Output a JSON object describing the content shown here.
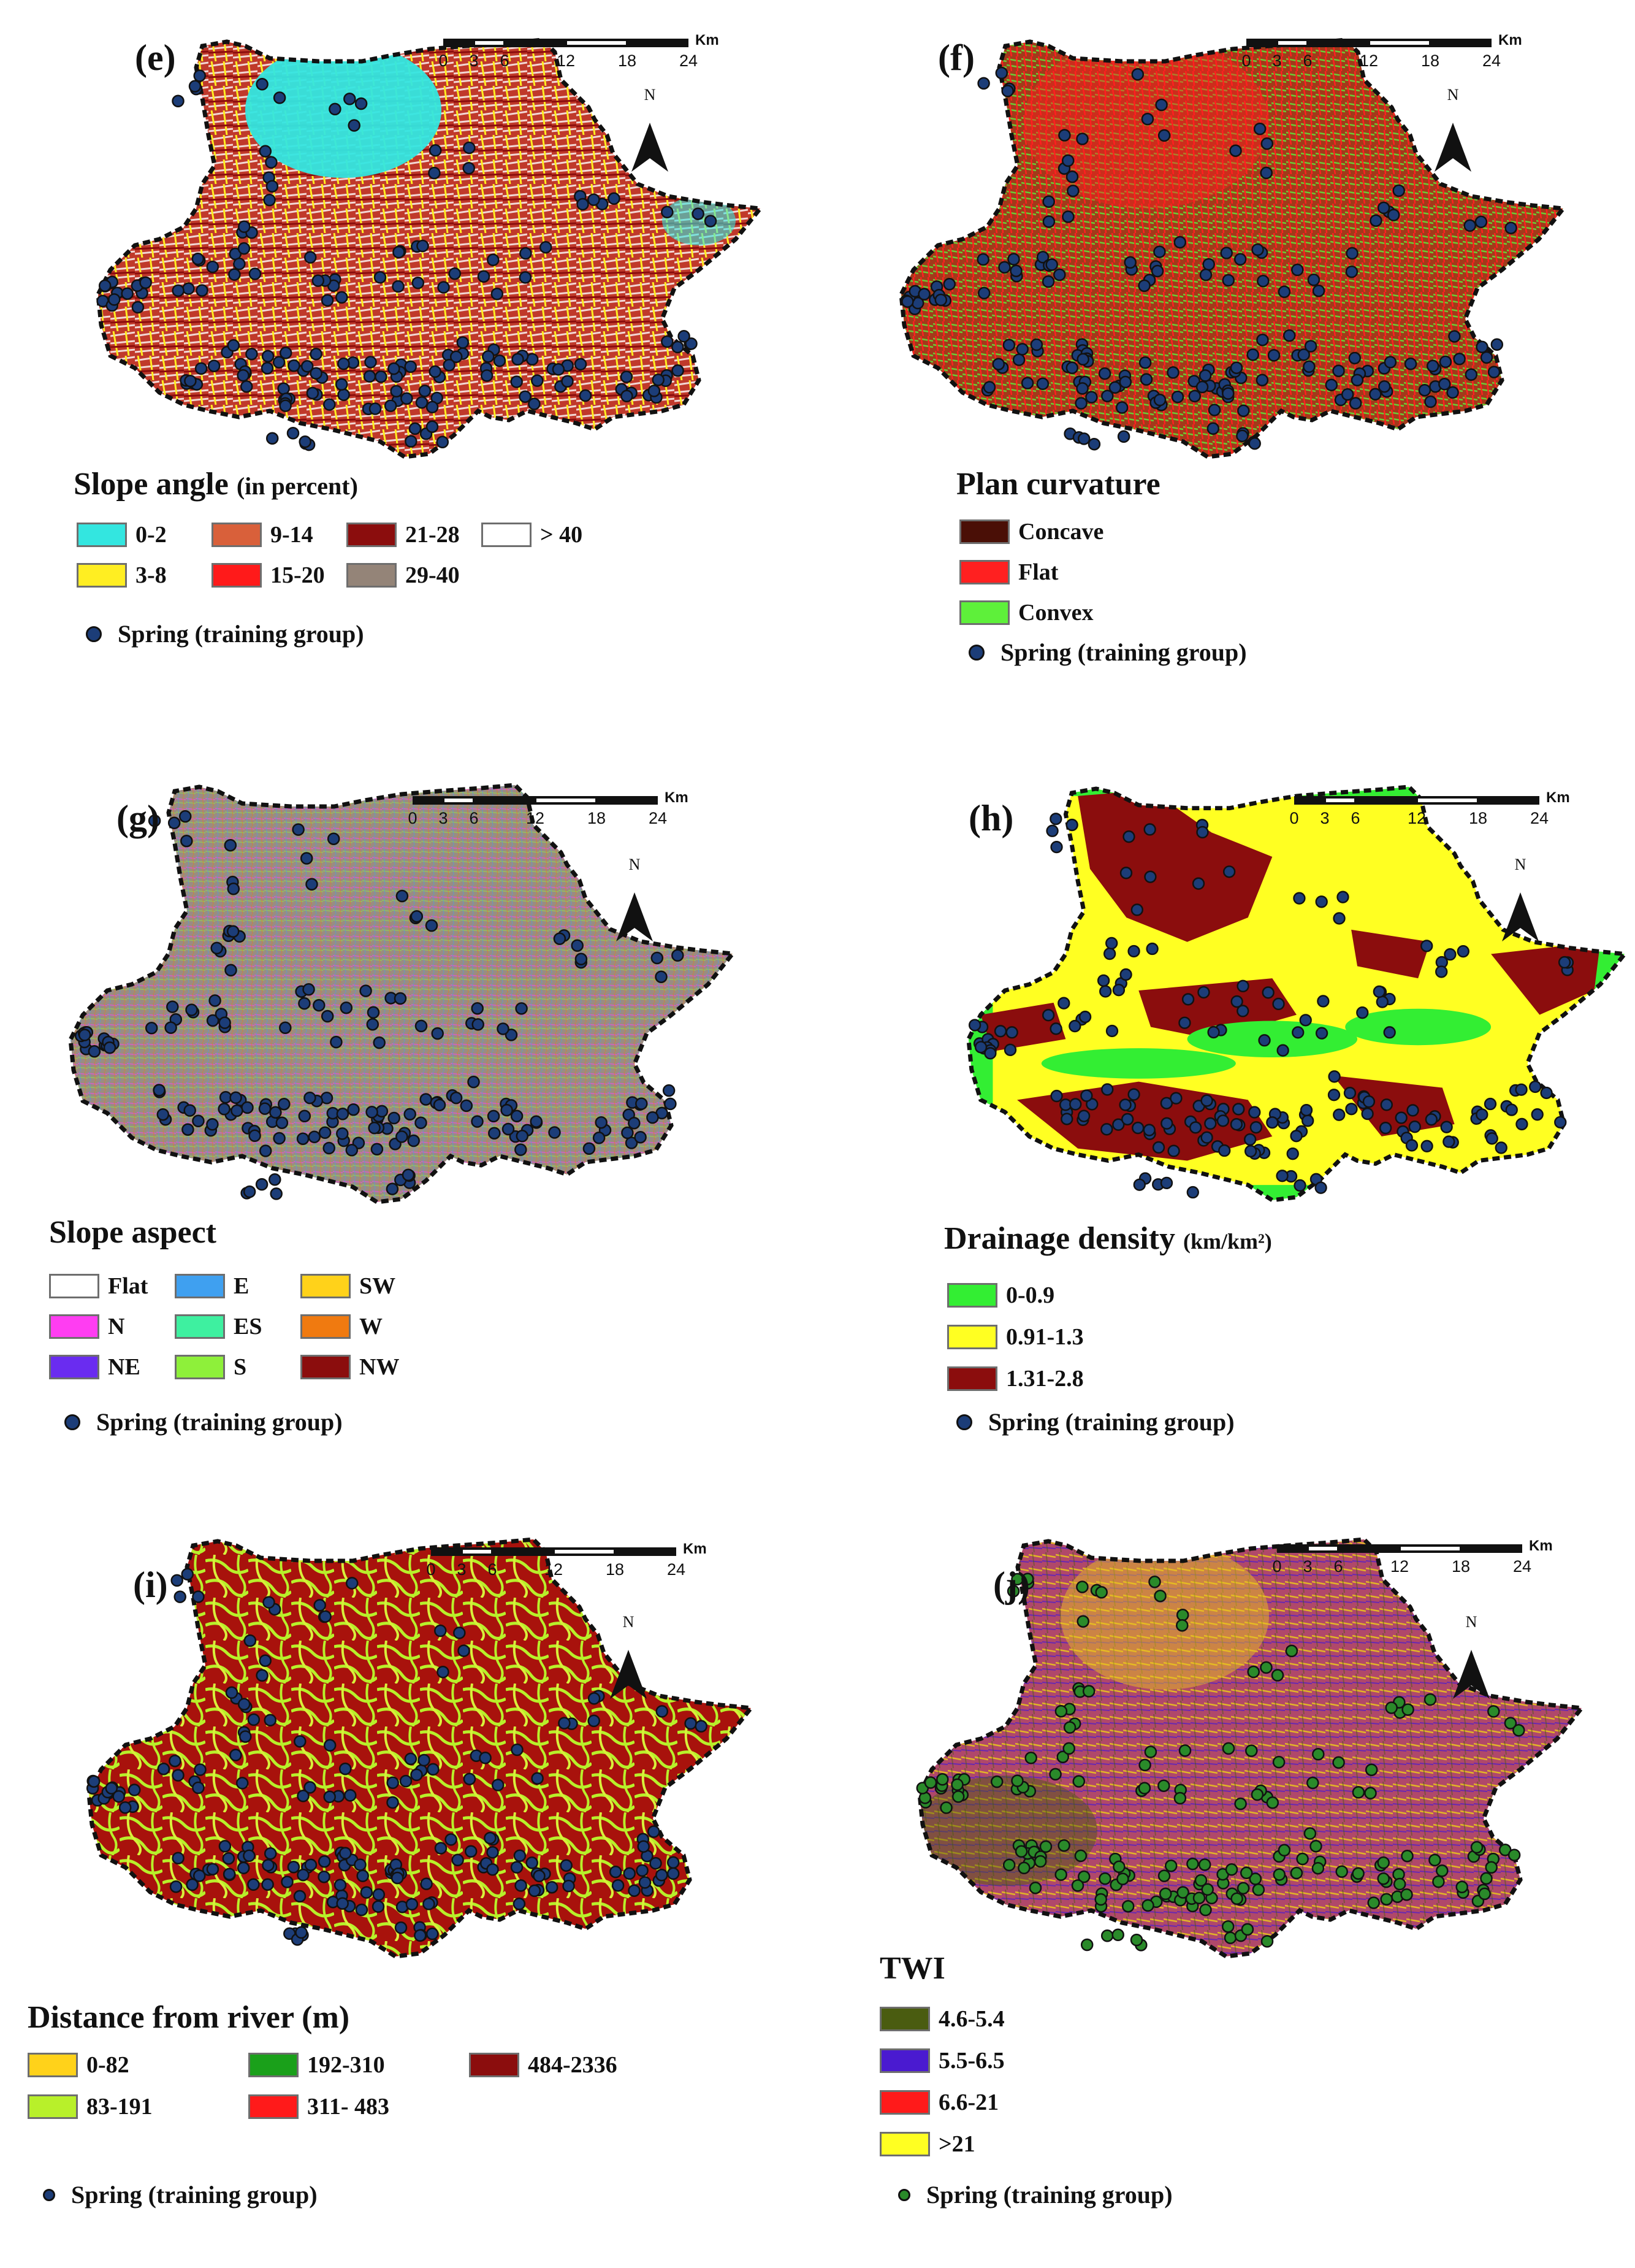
{
  "scale": {
    "ticks": [
      "0",
      "3",
      "6",
      "12",
      "18",
      "24"
    ],
    "unit": "Km"
  },
  "north_label": "N",
  "spring_label": "Spring (training group)",
  "panels": {
    "e": {
      "label": "(e)",
      "legend_title": "Slope angle",
      "legend_unit": "(in percent)",
      "classes": [
        {
          "label": "0-2",
          "color": "#33e6e0"
        },
        {
          "label": "3-8",
          "color": "#ffee22"
        },
        {
          "label": "9-14",
          "color": "#d9603a"
        },
        {
          "label": "15-20",
          "color": "#ff1a1a"
        },
        {
          "label": "21-28",
          "color": "#8b0d0d"
        },
        {
          "label": "29-40",
          "color": "#948478"
        },
        {
          "label": "> 40",
          "color": "#ffffff"
        }
      ],
      "spring_color": "#1c3d78"
    },
    "f": {
      "label": "(f)",
      "legend_title": "Plan curvature",
      "classes": [
        {
          "label": "Concave",
          "color": "#4a0f06"
        },
        {
          "label": "Flat",
          "color": "#ff2020"
        },
        {
          "label": "Convex",
          "color": "#5ef03a"
        }
      ],
      "spring_color": "#1c3d78"
    },
    "g": {
      "label": "(g)",
      "legend_title": "Slope aspect",
      "classes": [
        {
          "label": "Flat",
          "color": "#ffffff"
        },
        {
          "label": "N",
          "color": "#ff3df2"
        },
        {
          "label": "NE",
          "color": "#6a2cf0"
        },
        {
          "label": "E",
          "color": "#3fa0f0"
        },
        {
          "label": "ES",
          "color": "#3ef0a0"
        },
        {
          "label": "S",
          "color": "#8ef03a"
        },
        {
          "label": "SW",
          "color": "#ffd21a"
        },
        {
          "label": "W",
          "color": "#f07a10"
        },
        {
          "label": "NW",
          "color": "#8b0d0d"
        }
      ],
      "spring_color": "#1c3d78"
    },
    "h": {
      "label": "(h)",
      "legend_title": "Drainage density",
      "legend_unit": "(km/km²)",
      "classes": [
        {
          "label": "0-0.9",
          "color": "#33ee33"
        },
        {
          "label": "0.91-1.3",
          "color": "#ffff22"
        },
        {
          "label": "1.31-2.8",
          "color": "#8b0d0d"
        }
      ],
      "spring_color": "#1c3d78"
    },
    "i": {
      "label": "(i)",
      "legend_title": "Distance from river (m)",
      "classes": [
        {
          "label": "0-82",
          "color": "#ffd21a"
        },
        {
          "label": "83-191",
          "color": "#b8f02a"
        },
        {
          "label": "192-310",
          "color": "#1aa01a"
        },
        {
          "label": "311- 483",
          "color": "#ff1a1a"
        },
        {
          "label": "484-2336",
          "color": "#8b0d0d"
        }
      ],
      "spring_color": "#1c3d78"
    },
    "j": {
      "label": "(j)",
      "legend_title": "TWI",
      "classes": [
        {
          "label": "4.6-5.4",
          "color": "#4a5c10"
        },
        {
          "label": "5.5-6.5",
          "color": "#4a1ad0"
        },
        {
          "label": "6.6-21",
          "color": "#ff1a1a"
        },
        {
          "label": ">21",
          "color": "#ffff22"
        }
      ],
      "spring_color": "#2a8a2a"
    }
  }
}
